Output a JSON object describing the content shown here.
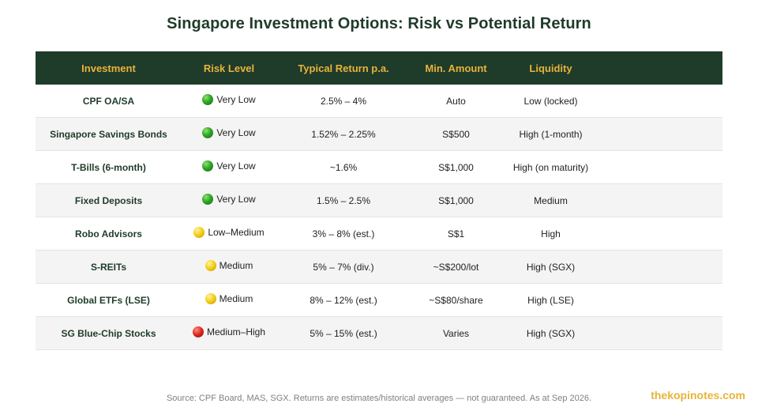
{
  "title": "Singapore Investment Options: Risk vs Potential Return",
  "columns": [
    "Investment",
    "Risk Level",
    "Typical Return p.a.",
    "Min. Amount",
    "Liquidity"
  ],
  "colors": {
    "header_bg": "#1f3b2a",
    "header_text": "#e8b33a",
    "risk_green": "#2fa52a",
    "risk_yellow": "#f2cd14",
    "risk_red": "#d8261b"
  },
  "rows": [
    {
      "investment": "CPF OA/SA",
      "risk": "Very Low",
      "risk_icon": "green-circle-icon",
      "return": "2.5% – 4%",
      "min_amount": "Auto",
      "liquidity": "Low (locked)"
    },
    {
      "investment": "Singapore Savings Bonds",
      "risk": "Very Low",
      "risk_icon": "green-circle-icon",
      "return": "1.52% – 2.25%",
      "min_amount": "S$500",
      "liquidity": "High (1-month)"
    },
    {
      "investment": "T-Bills (6-month)",
      "risk": "Very Low",
      "risk_icon": "green-circle-icon",
      "return": "~1.6%",
      "min_amount": "S$1,000",
      "liquidity": "High (on maturity)"
    },
    {
      "investment": "Fixed Deposits",
      "risk": "Very Low",
      "risk_icon": "green-circle-icon",
      "return": "1.5% – 2.5%",
      "min_amount": "S$1,000",
      "liquidity": "Medium"
    },
    {
      "investment": "Robo Advisors",
      "risk": "Low–Medium",
      "risk_icon": "yellow-circle-icon",
      "return": "3% – 8% (est.)",
      "min_amount": "S$1",
      "liquidity": "High"
    },
    {
      "investment": "S-REITs",
      "risk": "Medium",
      "risk_icon": "yellow-circle-icon",
      "return": "5% – 7% (div.)",
      "min_amount": "~S$200/lot",
      "liquidity": "High (SGX)"
    },
    {
      "investment": "Global ETFs (LSE)",
      "risk": "Medium",
      "risk_icon": "yellow-circle-icon",
      "return": "8% – 12% (est.)",
      "min_amount": "~S$80/share",
      "liquidity": "High (LSE)"
    },
    {
      "investment": "SG Blue-Chip Stocks",
      "risk": "Medium–High",
      "risk_icon": "red-circle-icon",
      "return": "5% – 15% (est.)",
      "min_amount": "Varies",
      "liquidity": "High (SGX)"
    }
  ],
  "footer": {
    "source": "Source: CPF Board, MAS, SGX. Returns are estimates/historical averages — not guaranteed. As at Sep 2026.",
    "brand": "thekopinotes.com"
  }
}
